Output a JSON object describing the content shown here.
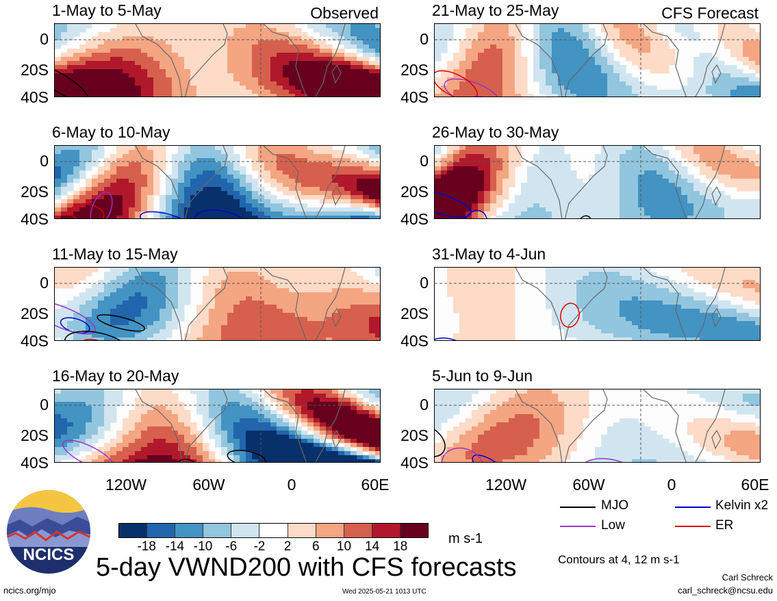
{
  "panels": [
    {
      "title": "1-May to 5-May",
      "tag": "Observed",
      "seed": 1
    },
    {
      "title": "6-May to 10-May",
      "tag": "",
      "seed": 2
    },
    {
      "title": "11-May to 15-May",
      "tag": "",
      "seed": 3
    },
    {
      "title": "16-May to 20-May",
      "tag": "",
      "seed": 4
    },
    {
      "title": "21-May to 25-May",
      "tag": "CFS Forecast",
      "seed": 5
    },
    {
      "title": "26-May to 30-May",
      "tag": "",
      "seed": 6
    },
    {
      "title": "31-May to 4-Jun",
      "tag": "",
      "seed": 7
    },
    {
      "title": "5-Jun to 9-Jun",
      "tag": "",
      "seed": 8
    }
  ],
  "y_labels": [
    "0",
    "20S",
    "40S"
  ],
  "x_labels": [
    "120W",
    "60W",
    "0",
    "60E"
  ],
  "legend": [
    {
      "label": "MJO",
      "color": "#000000"
    },
    {
      "label": "Kelvin x2",
      "color": "#0000cc"
    },
    {
      "label": "Low",
      "color": "#9933cc"
    },
    {
      "label": "ER",
      "color": "#dd0000"
    }
  ],
  "colorbar": {
    "colors": [
      "#08306b",
      "#2166ac",
      "#4393c3",
      "#92c5de",
      "#d1e5f0",
      "#ffffff",
      "#fddbc7",
      "#f4a582",
      "#d6604d",
      "#b2182b",
      "#67001f"
    ],
    "labels": [
      "-18",
      "-14",
      "-10",
      "-6",
      "-2",
      "2",
      "6",
      "10",
      "14",
      "18"
    ],
    "units": "m s-1"
  },
  "contours_note": "Contours at 4, 12 m s-1",
  "title": "5-day VWND200 with CFS forecasts",
  "logo_text": "NCICS",
  "footer_left": "ncics.org/mjo",
  "footer_center": "Wed 2025-05-21 1013 UTC",
  "author": "Carl Schreck",
  "email": "carl_schreck@ncsu.edu"
}
